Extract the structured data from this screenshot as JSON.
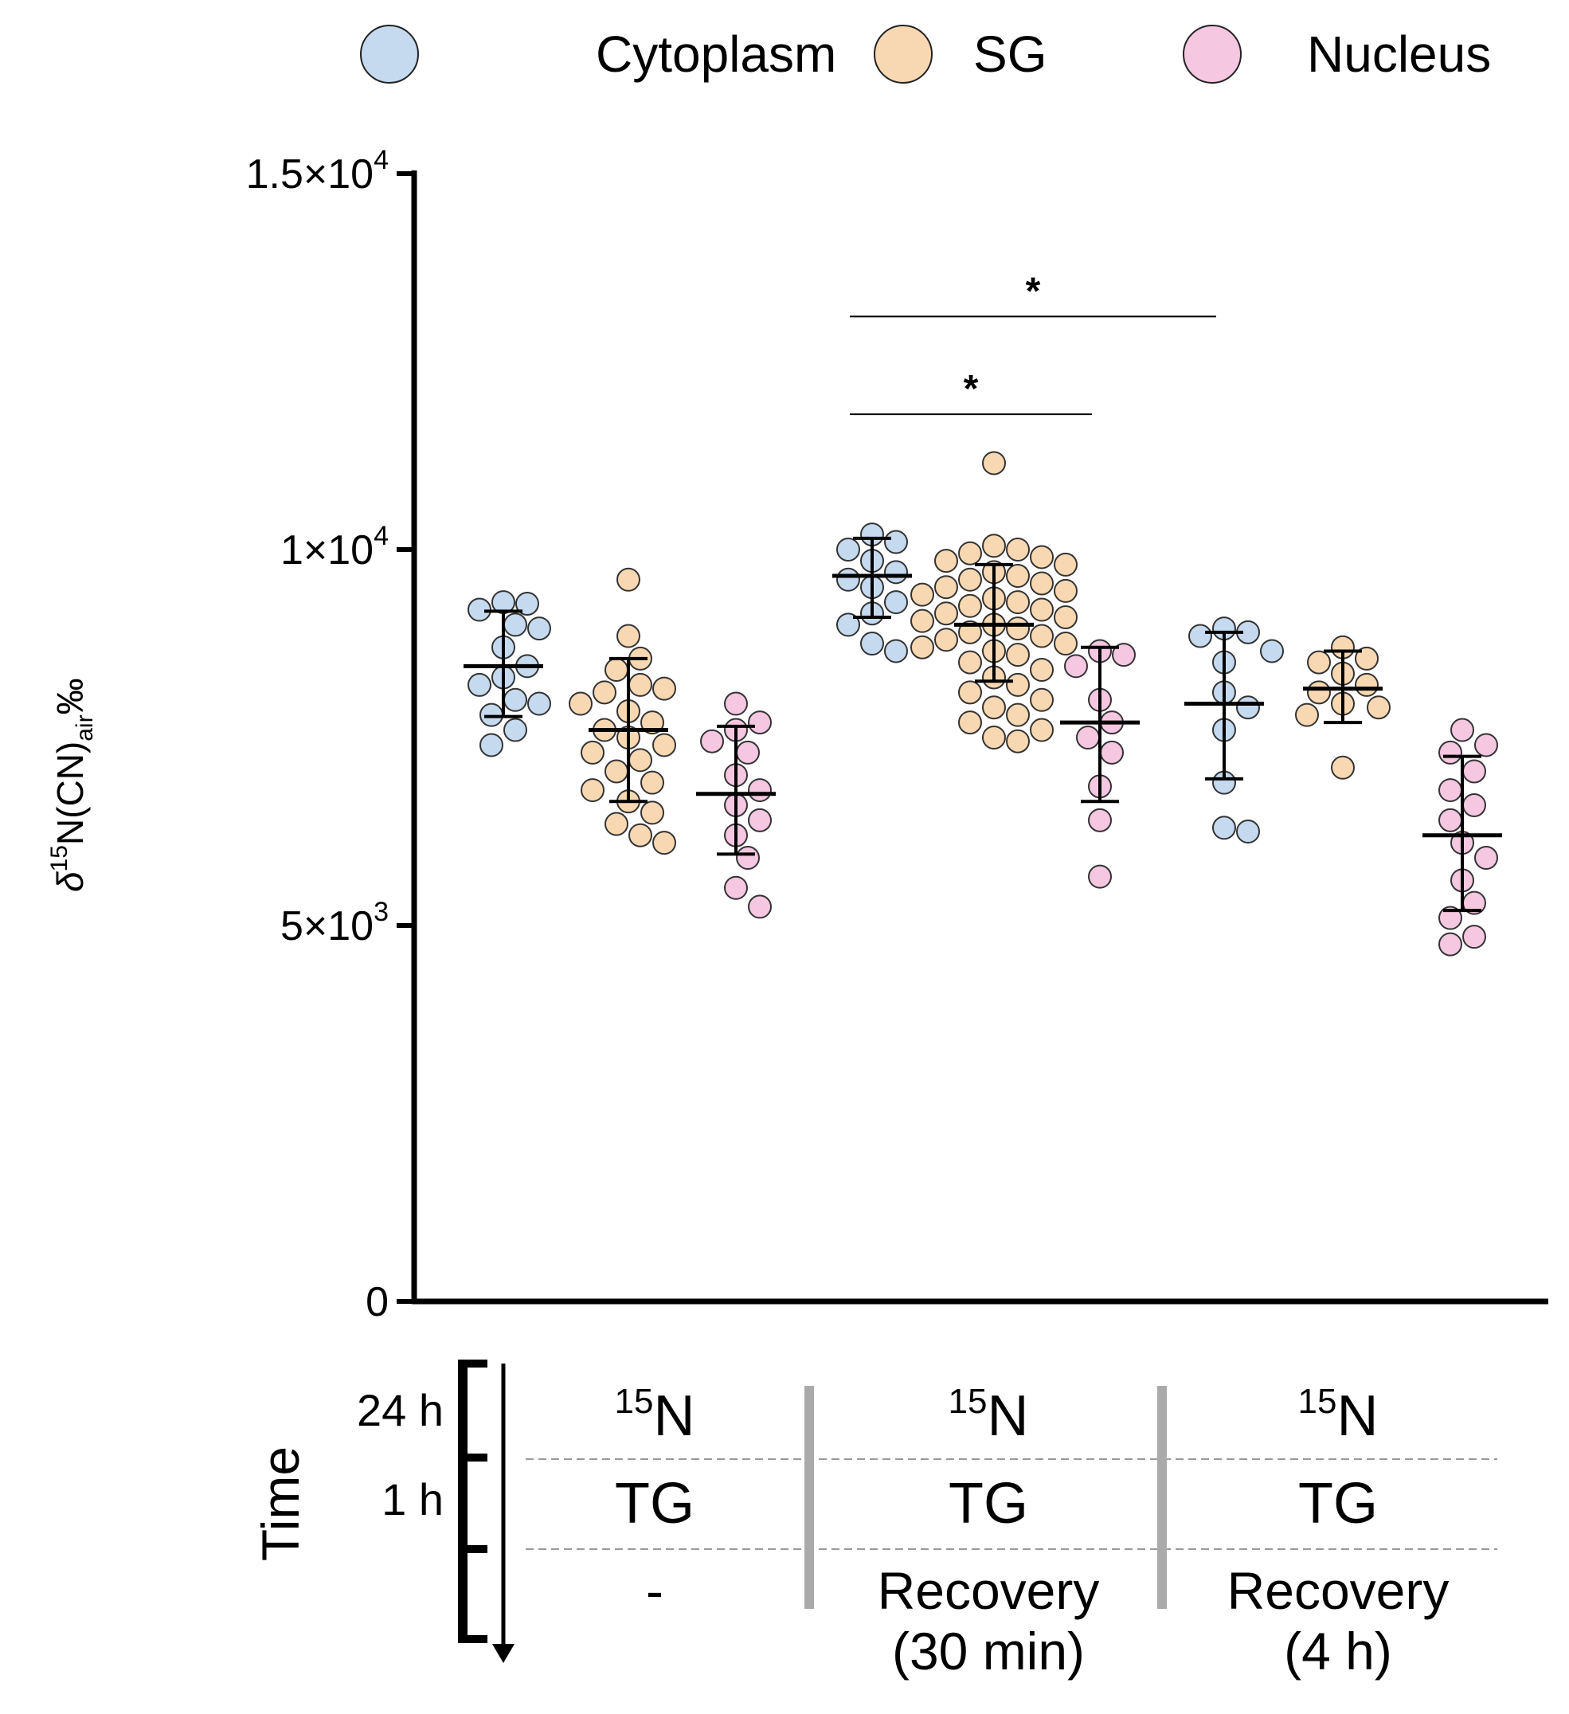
{
  "legend": {
    "placement": "top",
    "items": [
      {
        "label": "Cytoplasm",
        "color": "#c5d9ef"
      },
      {
        "label": "SG",
        "color": "#f8d8b2"
      },
      {
        "label": "Nucleus",
        "color": "#f5c7e0"
      }
    ]
  },
  "chart_data": {
    "type": "scatter",
    "ylabel_parts": {
      "delta": "δ",
      "sup": "15",
      "main": "N(CN)",
      "sub": "air",
      "unit": "‰"
    },
    "ylim": [
      0,
      15000
    ],
    "yticks": [
      {
        "value": 0,
        "base": "0",
        "exp": ""
      },
      {
        "value": 5000,
        "base": "5×10",
        "exp": "3"
      },
      {
        "value": 10000,
        "base": "1×10",
        "exp": "4"
      },
      {
        "value": 15000,
        "base": "1.5×10",
        "exp": "4"
      }
    ],
    "grid": false,
    "groups": [
      {
        "series": "Cytoplasm",
        "condition": "15N / TG / -",
        "mean": 8450,
        "sd_low": 7780,
        "sd_high": 9180,
        "values": [
          9300,
          9200,
          9280,
          8950,
          9000,
          8700,
          8450,
          8300,
          8200,
          8000,
          7950,
          7800,
          7600,
          7400
        ]
      },
      {
        "series": "SG",
        "condition": "15N / TG / -",
        "mean": 7600,
        "sd_low": 6650,
        "sd_high": 8550,
        "values": [
          9600,
          8850,
          8550,
          8400,
          8200,
          8150,
          8100,
          7950,
          7850,
          7700,
          7600,
          7500,
          7400,
          7300,
          7200,
          7050,
          6900,
          6800,
          6650,
          6500,
          6350,
          6200,
          6100
        ]
      },
      {
        "series": "Nucleus",
        "condition": "15N / TG / -",
        "mean": 6750,
        "sd_low": 5950,
        "sd_high": 7650,
        "values": [
          7950,
          7700,
          7600,
          7450,
          7300,
          7000,
          6800,
          6600,
          6400,
          6200,
          5900,
          5500,
          5250
        ]
      },
      {
        "series": "Cytoplasm",
        "condition": "15N / TG / Recovery (30 min)",
        "mean": 9650,
        "sd_low": 9100,
        "sd_high": 10150,
        "values": [
          10200,
          10100,
          10000,
          9850,
          9700,
          9600,
          9500,
          9300,
          9150,
          9000,
          8750,
          8650
        ]
      },
      {
        "series": "SG",
        "condition": "15N / TG / Recovery (30 min)",
        "mean": 9000,
        "sd_low": 8250,
        "sd_high": 9800,
        "values": [
          11150,
          10050,
          10000,
          9950,
          9900,
          9850,
          9800,
          9700,
          9650,
          9600,
          9550,
          9500,
          9450,
          9400,
          9350,
          9300,
          9250,
          9200,
          9150,
          9100,
          9050,
          9000,
          8950,
          8900,
          8850,
          8800,
          8750,
          8700,
          8650,
          8600,
          8500,
          8400,
          8300,
          8200,
          8100,
          8000,
          7900,
          7800,
          7700,
          7600,
          7500,
          7450
        ]
      },
      {
        "series": "Nucleus",
        "condition": "15N / TG / Recovery (30 min)",
        "mean": 7700,
        "sd_low": 6650,
        "sd_high": 8700,
        "values": [
          8650,
          8600,
          8450,
          8000,
          7700,
          7500,
          7300,
          6850,
          6400,
          5650
        ]
      },
      {
        "series": "Cytoplasm",
        "condition": "15N / TG / Recovery (4 h)",
        "mean": 7950,
        "sd_low": 6950,
        "sd_high": 8900,
        "values": [
          8950,
          8900,
          8850,
          8650,
          8500,
          8100,
          7900,
          7600,
          6900,
          6300,
          6250
        ]
      },
      {
        "series": "SG",
        "condition": "15N / TG / Recovery (4 h)",
        "mean": 8150,
        "sd_low": 7700,
        "sd_high": 8650,
        "values": [
          8700,
          8550,
          8500,
          8350,
          8200,
          8100,
          7950,
          7900,
          7800,
          7100
        ]
      },
      {
        "series": "Nucleus",
        "condition": "15N / TG / Recovery (4 h)",
        "mean": 6200,
        "sd_low": 5200,
        "sd_high": 7250,
        "values": [
          7600,
          7400,
          7300,
          7050,
          6800,
          6600,
          6400,
          6100,
          5900,
          5600,
          5300,
          5100,
          4850,
          4750
        ]
      }
    ],
    "significance": [
      {
        "from_group": 3,
        "to_group": 5,
        "y": 11800,
        "label": "*"
      },
      {
        "from_group": 3,
        "to_group": 6,
        "y": 13100,
        "label": "*"
      }
    ]
  },
  "conditions_table": {
    "time_label": "Time",
    "time_points": [
      "24 h",
      "1 h"
    ],
    "columns": [
      {
        "row1_sup": "15",
        "row1_main": "N",
        "row2": "TG",
        "row3_lines": [
          "-"
        ]
      },
      {
        "row1_sup": "15",
        "row1_main": "N",
        "row2": "TG",
        "row3_lines": [
          "Recovery",
          "(30 min)"
        ]
      },
      {
        "row1_sup": "15",
        "row1_main": "N",
        "row2": "TG",
        "row3_lines": [
          "Recovery",
          "(4 h)"
        ]
      }
    ]
  }
}
